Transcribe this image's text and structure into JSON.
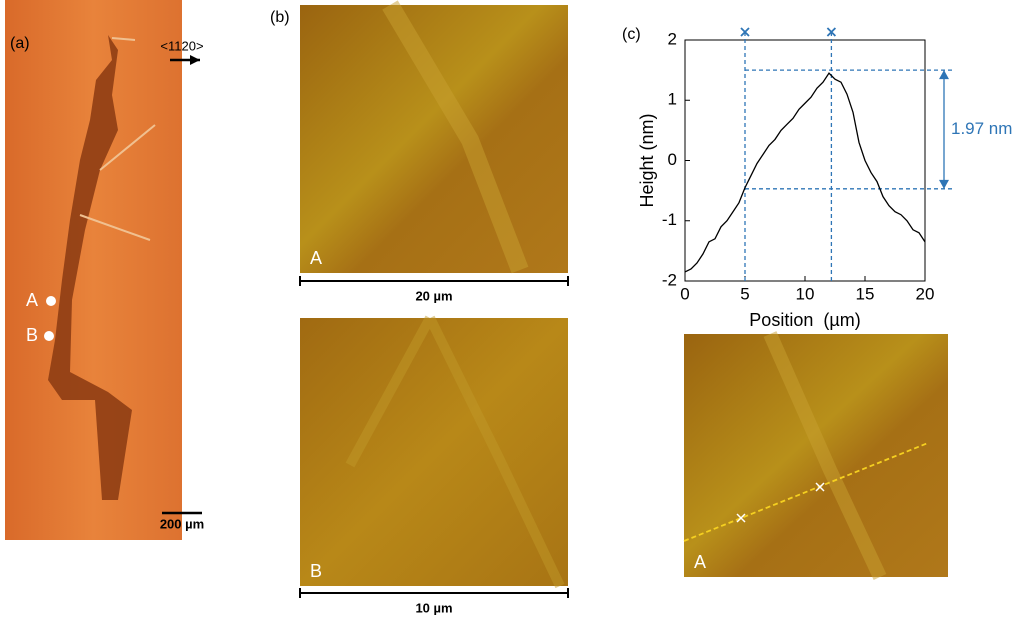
{
  "panel_a": {
    "label": "(a)",
    "direction": "<1120>",
    "points": [
      "A",
      "B"
    ],
    "scale": "200 µm"
  },
  "panel_b": {
    "label": "(b)",
    "images": [
      {
        "label": "A",
        "scale": "20 µm"
      },
      {
        "label": "B",
        "scale": "10 µm"
      }
    ]
  },
  "panel_c": {
    "label": "(c)",
    "image_label": "A"
  },
  "chart_data": {
    "type": "line",
    "xlabel": "Position  (µm)",
    "ylabel": "Height (nm)",
    "xlim": [
      0,
      20
    ],
    "ylim": [
      -2,
      2
    ],
    "xticks": [
      0,
      5,
      10,
      15,
      20
    ],
    "yticks": [
      -2,
      -1,
      0,
      1,
      2
    ],
    "x": [
      0,
      0.5,
      1,
      1.5,
      2,
      2.5,
      3,
      3.5,
      4,
      4.5,
      5,
      5.5,
      6,
      6.5,
      7,
      7.5,
      8,
      8.5,
      9,
      9.5,
      10,
      10.5,
      11,
      11.5,
      12,
      12.5,
      13,
      13.5,
      14,
      14.5,
      15,
      15.5,
      16,
      16.5,
      17,
      17.5,
      18,
      18.5,
      19,
      19.5,
      20
    ],
    "series": [
      {
        "name": "Height",
        "color": "#000000",
        "values": [
          -1.85,
          -1.8,
          -1.7,
          -1.55,
          -1.35,
          -1.3,
          -1.1,
          -1.0,
          -0.85,
          -0.7,
          -0.45,
          -0.25,
          -0.05,
          0.1,
          0.25,
          0.35,
          0.5,
          0.6,
          0.7,
          0.85,
          0.95,
          1.05,
          1.2,
          1.3,
          1.45,
          1.35,
          1.3,
          1.1,
          0.8,
          0.3,
          0,
          -0.2,
          -0.35,
          -0.6,
          -0.75,
          -0.85,
          -0.9,
          -1.0,
          -1.15,
          -1.2,
          -1.35
        ]
      }
    ],
    "marker_x": [
      5,
      12.2
    ],
    "marker_y": [
      1.5,
      -0.47
    ],
    "marker_color": "#2e75b6",
    "annotation": "1.97 nm"
  }
}
